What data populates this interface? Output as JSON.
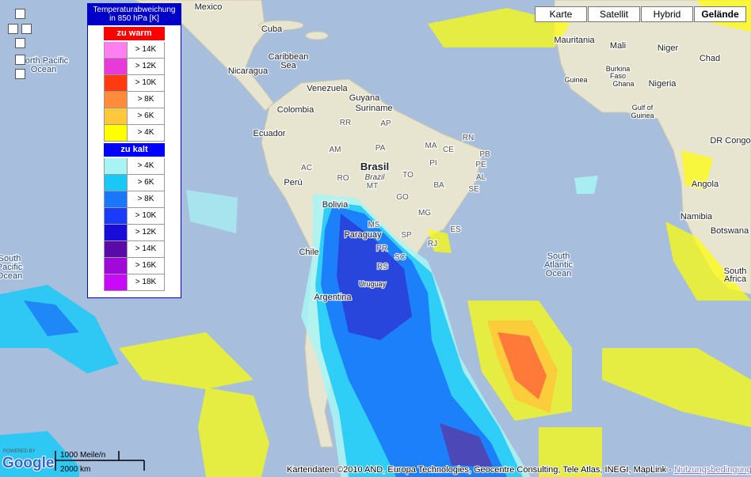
{
  "legend": {
    "title_lines": [
      "Temperaturabweichung",
      "in 850 hPa [K]"
    ],
    "warm": {
      "heading": "zu warm",
      "rows": [
        {
          "label": "> 14K",
          "color": "#ff7ff0"
        },
        {
          "label": "> 12K",
          "color": "#e83ad8"
        },
        {
          "label": "> 10K",
          "color": "#ff3a10"
        },
        {
          "label": "> 8K",
          "color": "#ff8c3a"
        },
        {
          "label": "> 6K",
          "color": "#ffc83a"
        },
        {
          "label": "> 4K",
          "color": "#ffff00"
        }
      ]
    },
    "cold": {
      "heading": "zu kalt",
      "rows": [
        {
          "label": "> 4K",
          "color": "#a8f4f4"
        },
        {
          "label": "> 6K",
          "color": "#1ac8f8"
        },
        {
          "label": "> 8K",
          "color": "#1a78f8"
        },
        {
          "label": "> 10K",
          "color": "#1a3cf8"
        },
        {
          "label": "> 12K",
          "color": "#1a0cd8"
        },
        {
          "label": "> 14K",
          "color": "#5a0aa8"
        },
        {
          "label": "> 16K",
          "color": "#a00ad8"
        },
        {
          "label": "> 18K",
          "color": "#c80af8"
        }
      ]
    }
  },
  "map_types": [
    "Karte",
    "Satellit",
    "Hybrid",
    "Gelände"
  ],
  "labels": [
    "Mexico",
    "Cuba",
    "Caribbean",
    "Sea",
    "Nicaragua",
    "Venezuela",
    "Guyana",
    "Suriname",
    "Colombia",
    "Ecuador",
    "Perú",
    "Brasil",
    "Brazil",
    "Bolivia",
    "Paraguay",
    "Chile",
    "Argentina",
    "Uruguay",
    "North Pacific",
    "Ocean",
    "South",
    "Pacific",
    "Ocean",
    "South",
    "Atlantic",
    "Ocean",
    "Mauritania",
    "Mali",
    "Niger",
    "Chad",
    "Burkina",
    "Faso",
    "Guinea",
    "Ghana",
    "Nigeria",
    "Gulf of",
    "Guinea",
    "DR Congo",
    "Angola",
    "Namibia",
    "Botswana",
    "South",
    "Africa",
    "RR",
    "AP",
    "AM",
    "PA",
    "MA",
    "CE",
    "RN",
    "PB",
    "PE",
    "AL",
    "SE",
    "PI",
    "TO",
    "BA",
    "AC",
    "RO",
    "MT",
    "GO",
    "MG",
    "MS",
    "SP",
    "ES",
    "RJ",
    "PR",
    "SC",
    "RS"
  ],
  "scale": {
    "miles": "1000 Meile/n",
    "km": "2000 km"
  },
  "footer": {
    "attribution": "Kartendaten ©2010 AND, Europa Technologies, Geocentre Consulting, Tele Atlas, INEGI, MapLink -",
    "terms": "Nutzungsbedingungen"
  },
  "logo": {
    "powered": "POWERED BY",
    "brand": "Google"
  }
}
